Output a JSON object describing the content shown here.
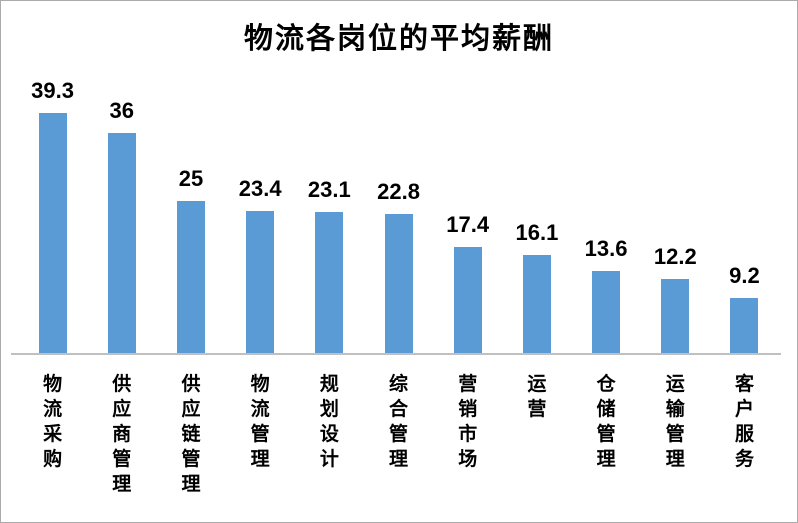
{
  "chart_data": {
    "type": "bar",
    "title": "物流各岗位的平均薪酬",
    "categories": [
      "物流采购",
      "供应商管理",
      "供应链管理",
      "物流管理",
      "规划设计",
      "综合管理",
      "营销市场",
      "运营",
      "仓储管理",
      "运输管理",
      "客户服务"
    ],
    "values": [
      39.3,
      36,
      25,
      23.4,
      23.1,
      22.8,
      17.4,
      16.1,
      13.6,
      12.2,
      9.2
    ],
    "value_labels": [
      "39.3",
      "36",
      "25",
      "23.4",
      "23.1",
      "22.8",
      "17.4",
      "16.1",
      "13.6",
      "12.2",
      "9.2"
    ],
    "xlabel": "",
    "ylabel": "",
    "ylim": [
      0,
      42
    ],
    "grid": false,
    "legend": "none",
    "data_labels_position": "above-bar",
    "category_label_orientation": "vertical-stacked",
    "bar_color": "#5B9BD5",
    "axis_line_color": "#C0C0C0",
    "text_color": "#000000",
    "frame_border_color": "#ABABAB",
    "background_color": "#FFFFFF"
  }
}
